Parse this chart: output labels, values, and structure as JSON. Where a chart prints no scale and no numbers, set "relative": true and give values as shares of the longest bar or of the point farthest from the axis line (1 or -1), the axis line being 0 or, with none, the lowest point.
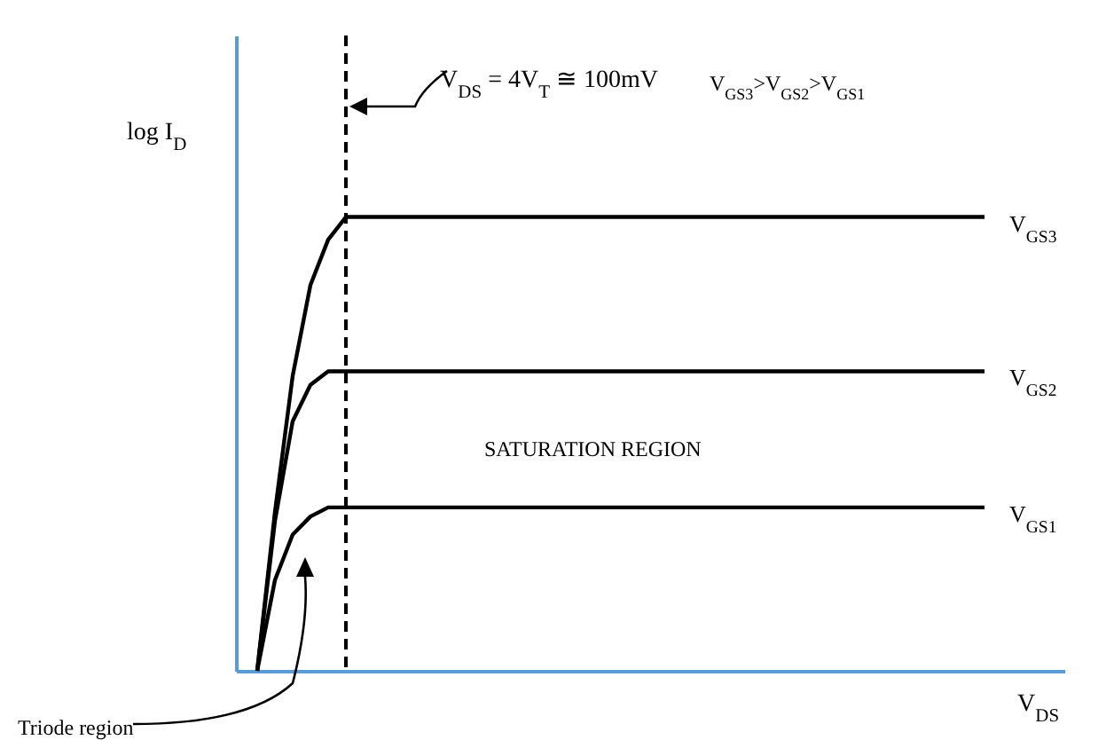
{
  "chart_data": {
    "type": "line",
    "relative": true,
    "xlabel": "V$_{DS}$",
    "ylabel": "log I$_{D}$",
    "categories": [
      null,
      null,
      null,
      null,
      null,
      null,
      null,
      null,
      null,
      null,
      null,
      null,
      null,
      null,
      null,
      null,
      null,
      null,
      null,
      null,
      null,
      null,
      null,
      null,
      null,
      null,
      null,
      null,
      null,
      null,
      null,
      null,
      null,
      null,
      null,
      null,
      null,
      null,
      null,
      null,
      null,
      null
    ],
    "series": [
      {
        "name": "V$_{GS3}$",
        "color": "#000000",
        "values": [
          0,
          0.35,
          0.65,
          0.85,
          0.95,
          1,
          1,
          1,
          1,
          1,
          1,
          1,
          1,
          1,
          1,
          1,
          1,
          1,
          1,
          1,
          1,
          1,
          1,
          1,
          1,
          1,
          1,
          1,
          1,
          1,
          1,
          1,
          1,
          1,
          1,
          1,
          1,
          1,
          1,
          1,
          1,
          1
        ]
      },
      {
        "name": "V$_{GS2}$",
        "color": "#000000",
        "values": [
          0,
          0.33,
          0.55,
          0.63,
          0.66,
          0.66,
          0.66,
          0.66,
          0.66,
          0.66,
          0.66,
          0.66,
          0.66,
          0.66,
          0.66,
          0.66,
          0.66,
          0.66,
          0.66,
          0.66,
          0.66,
          0.66,
          0.66,
          0.66,
          0.66,
          0.66,
          0.66,
          0.66,
          0.66,
          0.66,
          0.66,
          0.66,
          0.66,
          0.66,
          0.66,
          0.66,
          0.66,
          0.66,
          0.66,
          0.66,
          0.66,
          0.66
        ]
      },
      {
        "name": "V$_{GS1}$",
        "color": "#000000",
        "values": [
          0,
          0.2,
          0.3,
          0.34,
          0.36,
          0.36,
          0.36,
          0.36,
          0.36,
          0.36,
          0.36,
          0.36,
          0.36,
          0.36,
          0.36,
          0.36,
          0.36,
          0.36,
          0.36,
          0.36,
          0.36,
          0.36,
          0.36,
          0.36,
          0.36,
          0.36,
          0.36,
          0.36,
          0.36,
          0.36,
          0.36,
          0.36,
          0.36,
          0.36,
          0.36,
          0.36,
          0.36,
          0.36,
          0.36,
          0.36,
          0.36,
          0.36
        ]
      }
    ],
    "annotations": [
      "V$_{DS}$ = 4V$_{T}$ ≅ 100mV",
      "V$_{GS3}$>V$_{GS2}$>V$_{GS1}$",
      "SATURATION REGION",
      "Triode region"
    ],
    "line_style": "solid"
  }
}
